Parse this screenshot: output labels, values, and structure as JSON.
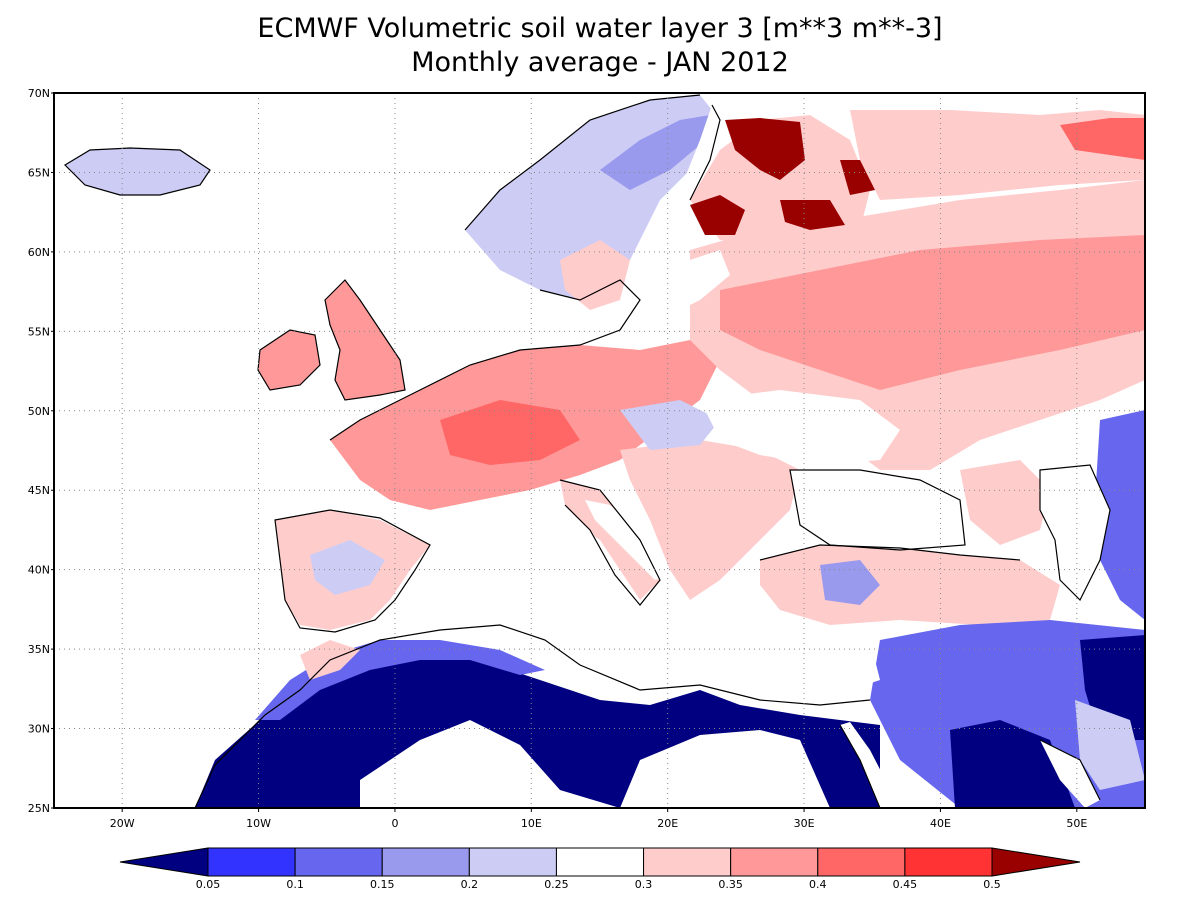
{
  "title": {
    "line1": "ECMWF Volumetric soil water layer 3 [m**3 m**-3]",
    "line2": "Monthly average - JAN 2012"
  },
  "axes": {
    "lat_labels": [
      "70N",
      "65N",
      "60N",
      "55N",
      "50N",
      "45N",
      "40N",
      "35N",
      "30N",
      "25N"
    ],
    "lat_values": [
      70,
      65,
      60,
      55,
      50,
      45,
      40,
      35,
      30,
      25
    ],
    "lon_labels": [
      "20W",
      "10W",
      "0",
      "10E",
      "20E",
      "30E",
      "40E",
      "50E"
    ],
    "lon_values": [
      -20,
      -10,
      0,
      10,
      20,
      30,
      40,
      50
    ],
    "lon_range": [
      -25,
      55
    ],
    "lat_range": [
      25,
      70
    ],
    "grid": "dotted"
  },
  "colorbar": {
    "labels": [
      "0.05",
      "0.1",
      "0.15",
      "0.2",
      "0.25",
      "0.3",
      "0.35",
      "0.4",
      "0.45",
      "0.5"
    ],
    "colors": [
      "#000080",
      "#3333ff",
      "#6666ee",
      "#9999ee",
      "#ccccf5",
      "#ffffff",
      "#ffcccc",
      "#ff9999",
      "#ff6666",
      "#ff3333",
      "#990000"
    ]
  },
  "regions": {
    "sahara_dry": "#000080",
    "atlas_margin": "#6666ee",
    "iberia": "#ffcccc",
    "france_germany": "#ff9999",
    "russia": "#ffcccc",
    "finland_wet": "#990000",
    "scandinavia_mts": "#9999ee",
    "norway": "#ccccf5",
    "uk": "#ff9999",
    "turkey": "#ffcccc",
    "anatolia_center": "#9999ee",
    "middle_east": "#000080",
    "caspian_east": "#000080"
  }
}
